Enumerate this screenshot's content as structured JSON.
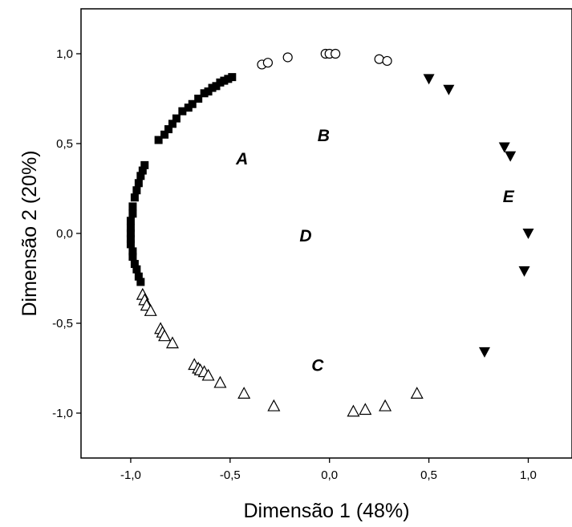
{
  "chart_data": {
    "type": "scatter",
    "xlabel": "Dimensão 1 (48%)",
    "ylabel": "Dimensão 2 (20%)",
    "xlim": [
      -1.25,
      1.22
    ],
    "ylim": [
      -1.25,
      1.25
    ],
    "grid": false,
    "x_ticks": [
      -1.0,
      -0.5,
      0.0,
      0.5,
      1.0
    ],
    "x_tick_labels": [
      "-1,0",
      "-0,5",
      "0,0",
      "0,5",
      "1,0"
    ],
    "y_ticks": [
      -1.0,
      -0.5,
      0.0,
      0.5,
      1.0
    ],
    "y_tick_labels": [
      "-1,0",
      "-0,5",
      "0,0",
      "0,5",
      "1,0"
    ],
    "series": [
      {
        "marker": "filled-square",
        "color": "#000000",
        "points": [
          [
            -0.49,
            0.87
          ],
          [
            -0.51,
            0.86
          ],
          [
            -0.53,
            0.85
          ],
          [
            -0.55,
            0.84
          ],
          [
            -0.57,
            0.82
          ],
          [
            -0.59,
            0.81
          ],
          [
            -0.61,
            0.79
          ],
          [
            -0.63,
            0.78
          ],
          [
            -0.66,
            0.75
          ],
          [
            -0.69,
            0.72
          ],
          [
            -0.71,
            0.7
          ],
          [
            -0.74,
            0.68
          ],
          [
            -0.77,
            0.64
          ],
          [
            -0.79,
            0.61
          ],
          [
            -0.81,
            0.58
          ],
          [
            -0.83,
            0.55
          ],
          [
            -0.86,
            0.52
          ],
          [
            -0.93,
            0.38
          ],
          [
            -0.94,
            0.35
          ],
          [
            -0.95,
            0.32
          ],
          [
            -0.96,
            0.28
          ],
          [
            -0.97,
            0.24
          ],
          [
            -0.98,
            0.2
          ],
          [
            -0.99,
            0.15
          ],
          [
            -0.99,
            0.11
          ],
          [
            -1.0,
            0.07
          ],
          [
            -1.0,
            0.03
          ],
          [
            -1.0,
            0.0
          ],
          [
            -1.0,
            -0.03
          ],
          [
            -1.0,
            -0.06
          ],
          [
            -0.99,
            -0.1
          ],
          [
            -0.99,
            -0.13
          ],
          [
            -0.98,
            -0.17
          ],
          [
            -0.97,
            -0.2
          ],
          [
            -0.96,
            -0.24
          ],
          [
            -0.95,
            -0.27
          ]
        ]
      },
      {
        "marker": "open-circle",
        "color": "#000000",
        "points": [
          [
            -0.34,
            0.94
          ],
          [
            -0.31,
            0.95
          ],
          [
            -0.21,
            0.98
          ],
          [
            -0.02,
            1.0
          ],
          [
            0.0,
            1.0
          ],
          [
            0.03,
            1.0
          ],
          [
            0.25,
            0.97
          ],
          [
            0.29,
            0.96
          ]
        ]
      },
      {
        "marker": "filled-triangle-down",
        "color": "#000000",
        "points": [
          [
            0.5,
            0.86
          ],
          [
            0.6,
            0.8
          ],
          [
            0.88,
            0.48
          ],
          [
            0.91,
            0.43
          ],
          [
            1.0,
            0.0
          ],
          [
            0.98,
            -0.21
          ],
          [
            0.78,
            -0.66
          ]
        ]
      },
      {
        "marker": "open-triangle-up",
        "color": "#000000",
        "points": [
          [
            -0.94,
            -0.34
          ],
          [
            -0.93,
            -0.37
          ],
          [
            -0.92,
            -0.4
          ],
          [
            -0.9,
            -0.43
          ],
          [
            -0.85,
            -0.53
          ],
          [
            -0.84,
            -0.55
          ],
          [
            -0.83,
            -0.57
          ],
          [
            -0.79,
            -0.61
          ],
          [
            -0.68,
            -0.73
          ],
          [
            -0.66,
            -0.75
          ],
          [
            -0.65,
            -0.76
          ],
          [
            -0.63,
            -0.77
          ],
          [
            -0.61,
            -0.79
          ],
          [
            -0.55,
            -0.83
          ],
          [
            -0.43,
            -0.89
          ],
          [
            -0.28,
            -0.96
          ],
          [
            0.12,
            -0.99
          ],
          [
            0.18,
            -0.98
          ],
          [
            0.28,
            -0.96
          ],
          [
            0.44,
            -0.89
          ]
        ]
      }
    ],
    "annotations": [
      {
        "text": "A",
        "x": -0.44,
        "y": 0.42
      },
      {
        "text": "B",
        "x": -0.03,
        "y": 0.55
      },
      {
        "text": "E",
        "x": 0.9,
        "y": 0.21
      },
      {
        "text": "D",
        "x": -0.12,
        "y": -0.01
      },
      {
        "text": "C",
        "x": -0.06,
        "y": -0.73
      }
    ]
  }
}
